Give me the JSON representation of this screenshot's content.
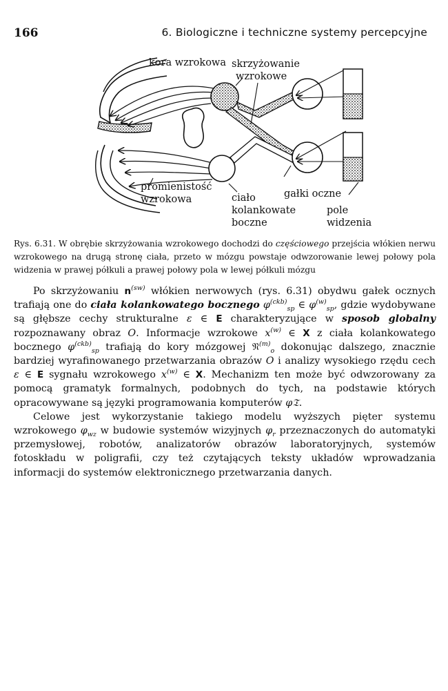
{
  "header": {
    "page_number": "166",
    "running_title": "6. Biologiczne i techniczne systemy percepcyjne"
  },
  "figure": {
    "labels": {
      "kora": "kora wzrokowa",
      "skrz1": "skrzyżowanie",
      "skrz2": "wzrokowe",
      "prom1": "promienistość",
      "prom2": "wzrokowa",
      "cialo1": "ciało",
      "cialo2": "kolankowate",
      "cialo3": "boczne",
      "galki": "gałki oczne",
      "pole1": "pole",
      "pole2": "widzenia"
    }
  },
  "caption": {
    "label": "Rys. 6.31.",
    "text_a": " W obrębie skrzyżowania wzrokowego dochodzi do ",
    "text_italic": "częściowego",
    "text_b": " przejścia włókien nerwu wzrokowego na drugą stronę ciała, przeto w mózgu powstaje odwzorowanie lewej połowy pola widzenia w prawej półkuli a prawej połowy pola w lewej półkuli mózgu"
  },
  "body": {
    "p1": {
      "t1": "Po skrzyżowaniu ",
      "t2": " włókien nerwowych (rys. 6.31) obydwu gałek ocznych trafiają one do ",
      "t3": "ciała kolankowatego bocznego",
      "t4": ", gdzie wydobywane są głębsze cechy strukturalne ",
      "t5": " charakteryzujące w ",
      "t6": "sposob globalny",
      "t7": " rozpoznawany obraz ",
      "t8": ". Informacje wzrokowe ",
      "t9": " z ciała kolankowatego bocznego ",
      "t10": " trafiają do kory mózgowej ",
      "t11": " dokonując dalszego, znacznie bardziej wyrafinowanego przetwarzania obrazów ",
      "t12": " i analizy wysokiego rzędu cech ",
      "t13": " sygnału wzrokowego ",
      "t14": ". Mechanizm ten może być odwzorowany za pomocą gramatyk formalnych, podobnych do tych, na podstawie których opracowywane są języki programowania komputerów "
    },
    "p2": {
      "t1": "Celowe jest wykorzystanie takiego modelu wyższych pięter systemu wzrokowego ",
      "t2": " w budowie systemów wizyjnych ",
      "t3": " przeznaczonych do automatyki przemysłowej, robotów, analizatorów obrazów laboratoryjnych, systemów fotoskładu w poligrafii, czy też czytających teksty układów wprowadzania informacji do systemów elektronicznego przetwarzania danych."
    },
    "math": {
      "n_sw_base": "n",
      "n_sw_sup": "(sw)",
      "phi": "φ",
      "sp": "sp",
      "ckb": "(ckb)",
      "w": "(w)",
      "in": "∈",
      "eps": "ε",
      "E": "E",
      "O": "O",
      "x": "x",
      "X": "X",
      "N": "𝔑",
      "o": "o",
      "m": "(m)",
      "period": ".",
      "phi_frak": "φ𝔗",
      "phi_wz_sub": "wz",
      "phi_r_sub": "r"
    }
  }
}
